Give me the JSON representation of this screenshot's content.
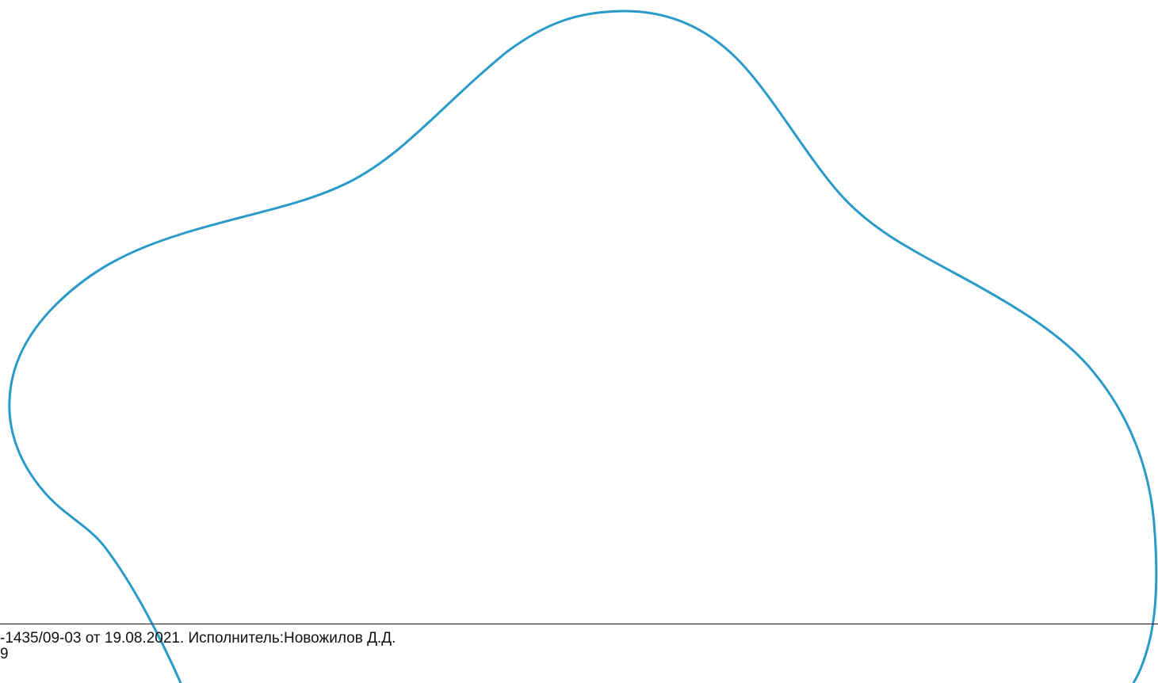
{
  "footer": {
    "line1": "-1435/09-03 от 19.08.2021. Исполнитель:Новожилов Д.Д.",
    "line2": "9"
  },
  "colors": {
    "outline": "#2a9ac8",
    "rule": "#1a1a1a",
    "text": "#111111",
    "background": "#ffffff"
  }
}
